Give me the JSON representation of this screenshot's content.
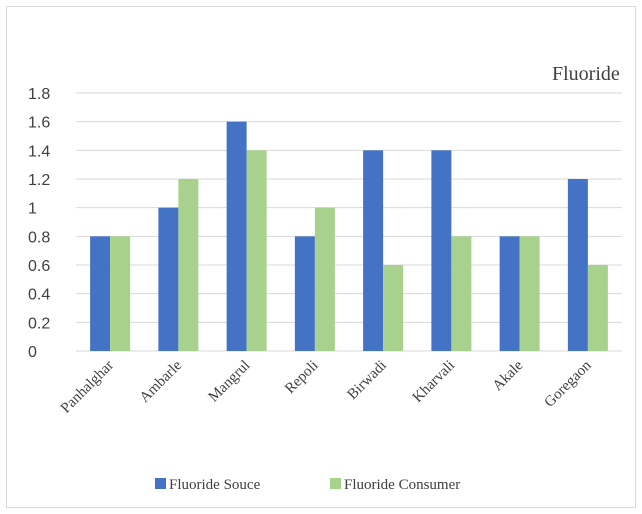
{
  "chart_data": {
    "type": "bar",
    "title": "Fluoride",
    "xlabel": "",
    "ylabel": "",
    "ylim": [
      0,
      1.8
    ],
    "yticks": [
      "0",
      "0.2",
      "0.4",
      "0.6",
      "0.8",
      "1",
      "1.2",
      "1.4",
      "1.6",
      "1.8"
    ],
    "grid": true,
    "legend_position": "bottom",
    "categories": [
      "Panhalghar",
      "Ambarle",
      "Mangrul",
      "Repoli",
      "Birwadi",
      "Kharvali",
      "Akale",
      "Goregaon"
    ],
    "series": [
      {
        "name": "Fluoride Souce",
        "color": "#4472c4",
        "values": [
          0.8,
          1.0,
          1.6,
          0.8,
          1.4,
          1.4,
          0.8,
          1.2
        ]
      },
      {
        "name": "Fluoride Consumer",
        "color": "#a9d18e",
        "values": [
          0.8,
          1.2,
          1.4,
          1.0,
          0.6,
          0.8,
          0.8,
          0.6
        ]
      }
    ]
  }
}
